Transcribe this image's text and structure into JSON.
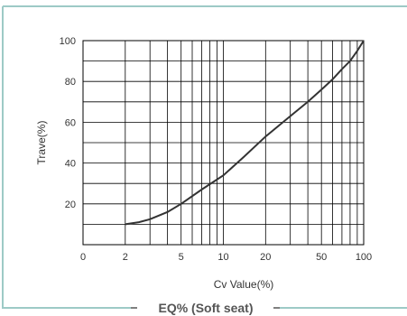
{
  "chart_data": {
    "type": "line",
    "title": "EQ% (Soft seat)",
    "xlabel": "Cv  Value(%)",
    "ylabel": "Trave(%)",
    "x_scale": "log",
    "xlim": [
      1,
      100
    ],
    "ylim": [
      0,
      100
    ],
    "x_ticks": [
      {
        "value": 1,
        "label": "0"
      },
      {
        "value": 2,
        "label": "2"
      },
      {
        "value": 5,
        "label": "5"
      },
      {
        "value": 10,
        "label": "10"
      },
      {
        "value": 20,
        "label": "20"
      },
      {
        "value": 50,
        "label": "50"
      },
      {
        "value": 100,
        "label": "100"
      }
    ],
    "y_ticks": [
      20,
      40,
      60,
      80,
      100
    ],
    "grid": true,
    "series": [
      {
        "x": [
          2,
          2.5,
          3,
          4,
          5,
          7,
          10,
          14,
          20,
          30,
          40,
          50,
          60,
          70,
          80,
          90,
          100
        ],
        "y": [
          10,
          11,
          12.5,
          16,
          20,
          27,
          34,
          43,
          53,
          63,
          70,
          76,
          81,
          86,
          90,
          95,
          100
        ]
      }
    ],
    "colors": {
      "frame": "#9dcac6",
      "grid": "#000000",
      "curve": "#333333"
    }
  }
}
